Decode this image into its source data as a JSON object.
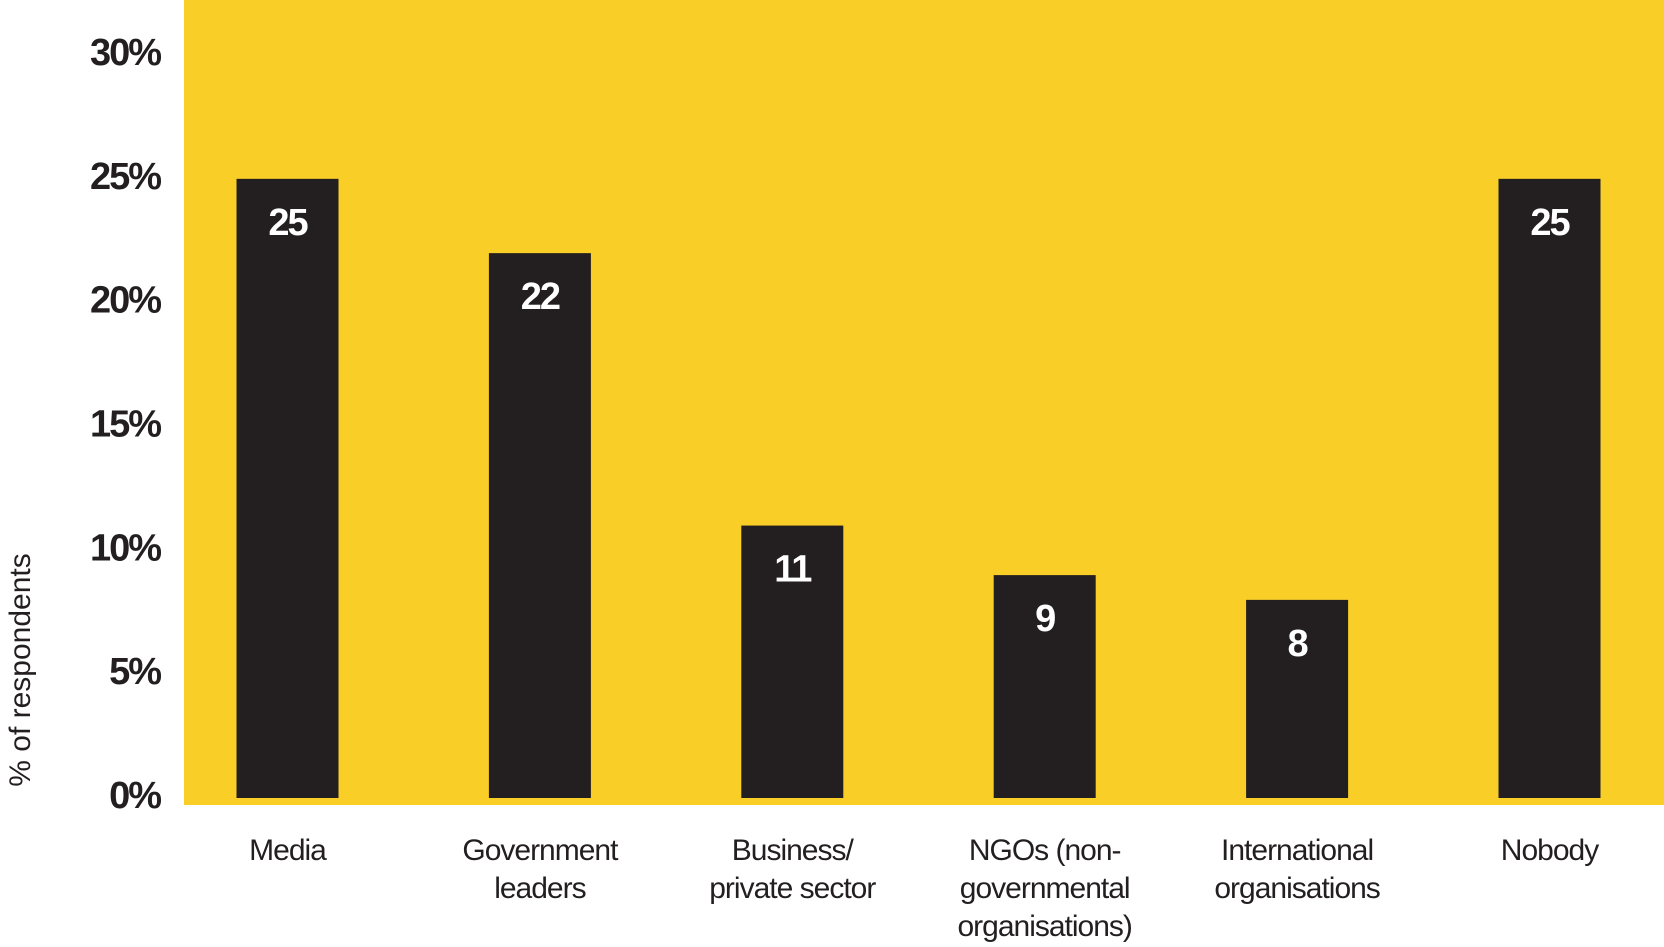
{
  "chart_data": {
    "type": "bar",
    "y_label": "% of respondents",
    "categories": [
      "Media",
      "Government\nleaders",
      "Business/\nprivate sector",
      "NGOs (non-\ngovernmental\norganisations)",
      "International\norganisations",
      "Nobody"
    ],
    "values": [
      25,
      22,
      11,
      9,
      8,
      25
    ],
    "color": "#231f20",
    "background": "#f9cf27",
    "ylim": [
      0,
      30
    ],
    "yticks": [
      {
        "value": 0,
        "label": "0%"
      },
      {
        "value": 5,
        "label": "5%"
      },
      {
        "value": 10,
        "label": "10%"
      },
      {
        "value": 15,
        "label": "15%"
      },
      {
        "value": 20,
        "label": "20%"
      },
      {
        "value": 25,
        "label": "25%"
      },
      {
        "value": 30,
        "label": "30%"
      }
    ],
    "grid": false
  }
}
